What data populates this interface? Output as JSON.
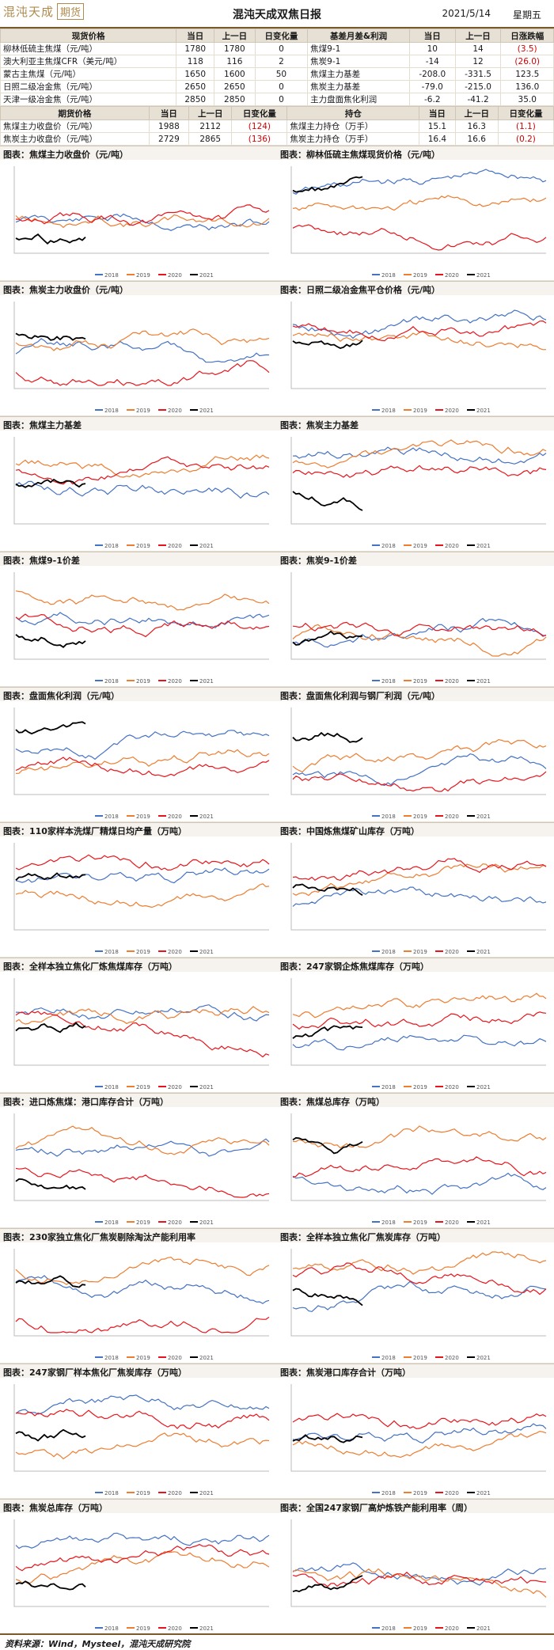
{
  "header": {
    "logo_text": "混沌天成",
    "logo_box_text": "期货",
    "title": "混沌天成双焦日报",
    "date": "2021/5/14",
    "weekday": "星期五"
  },
  "spot_table": {
    "headers": [
      "现货价格",
      "当日",
      "上一日",
      "日变化量",
      "基差月差&利润",
      "当日",
      "上一日",
      "日涨跌幅"
    ],
    "rows": [
      [
        "柳林低硫主焦煤（元/吨）",
        "1780",
        "1780",
        "0",
        "焦煤9-1",
        "10",
        "14",
        "(3.5)"
      ],
      [
        "澳大利亚主焦煤CFR（美元/吨）",
        "118",
        "116",
        "2",
        "焦炭9-1",
        "-14",
        "12",
        "(26.0)"
      ],
      [
        "蒙古主焦煤（元/吨）",
        "1650",
        "1600",
        "50",
        "焦煤主力基差",
        "-208.0",
        "-331.5",
        "123.5"
      ],
      [
        "日照二级冶金焦（元/吨）",
        "2650",
        "2650",
        "0",
        "焦炭主力基差",
        "-79.0",
        "-215.0",
        "136.0"
      ],
      [
        "天津一级冶金焦（元/吨）",
        "2850",
        "2850",
        "0",
        "主力盘面焦化利润",
        "-6.2",
        "-41.2",
        "35.0"
      ]
    ]
  },
  "futures_table": {
    "headers": [
      "期货价格",
      "当日",
      "上一日",
      "日变化量",
      "持仓",
      "当日",
      "上一日",
      "日变化量"
    ],
    "rows": [
      [
        "焦煤主力收盘价（元/吨）",
        "1988",
        "2112",
        "(124)",
        "焦煤主力持仓（万手）",
        "15.1",
        "16.3",
        "(1.1)"
      ],
      [
        "焦炭主力收盘价（元/吨）",
        "2729",
        "2865",
        "(136)",
        "焦炭主力持仓（万手）",
        "16.4",
        "16.6",
        "(0.2)"
      ]
    ]
  },
  "charts": [
    {
      "title": "图表：焦煤主力收盘价（元/吨）"
    },
    {
      "title": "图表：柳林低硫主焦煤现货价格（元/吨）"
    },
    {
      "title": "图表：焦炭主力收盘价（元/吨）"
    },
    {
      "title": "图表：日照二级冶金焦平仓价格（元/吨）"
    },
    {
      "title": "图表：焦煤主力基差"
    },
    {
      "title": "图表：焦炭主力基差"
    },
    {
      "title": "图表：焦煤9-1价差"
    },
    {
      "title": "图表：焦炭9-1价差"
    },
    {
      "title": "图表：盘面焦化利润（元/吨）"
    },
    {
      "title": "图表：盘面焦化利润与钢厂利润（元/吨）"
    },
    {
      "title": "图表：110家样本洗煤厂精煤日均产量（万吨）"
    },
    {
      "title": "图表：中国炼焦煤矿山库存（万吨）"
    },
    {
      "title": "图表：全样本独立焦化厂炼焦煤库存（万吨）"
    },
    {
      "title": "图表：247家钢企炼焦煤库存（万吨）"
    },
    {
      "title": "图表：进口炼焦煤：港口库存合计（万吨）"
    },
    {
      "title": "图表：焦煤总库存（万吨）"
    },
    {
      "title": "图表：230家独立焦化厂焦炭剔除淘汰产能利用率"
    },
    {
      "title": "图表：全样本独立焦化厂焦炭库存（万吨）"
    },
    {
      "title": "图表：247家钢厂样本焦化厂焦炭库存（万吨）"
    },
    {
      "title": "图表：焦炭港口库存合计（万吨）"
    },
    {
      "title": "图表：焦炭总库存（万吨）"
    },
    {
      "title": "图表：全国247家钢厂高炉炼铁产能利用率（周）"
    }
  ],
  "legend": [
    "2018",
    "2019",
    "2020",
    "2021"
  ],
  "colors": {
    "s2018": "#4472c4",
    "s2019": "#ed7d31",
    "s2020": "#e8141b",
    "s2021": "#000000",
    "s_purple": "#7030a0"
  },
  "source": "资料来源：Wind，Mysteel，混沌天成研究院"
}
